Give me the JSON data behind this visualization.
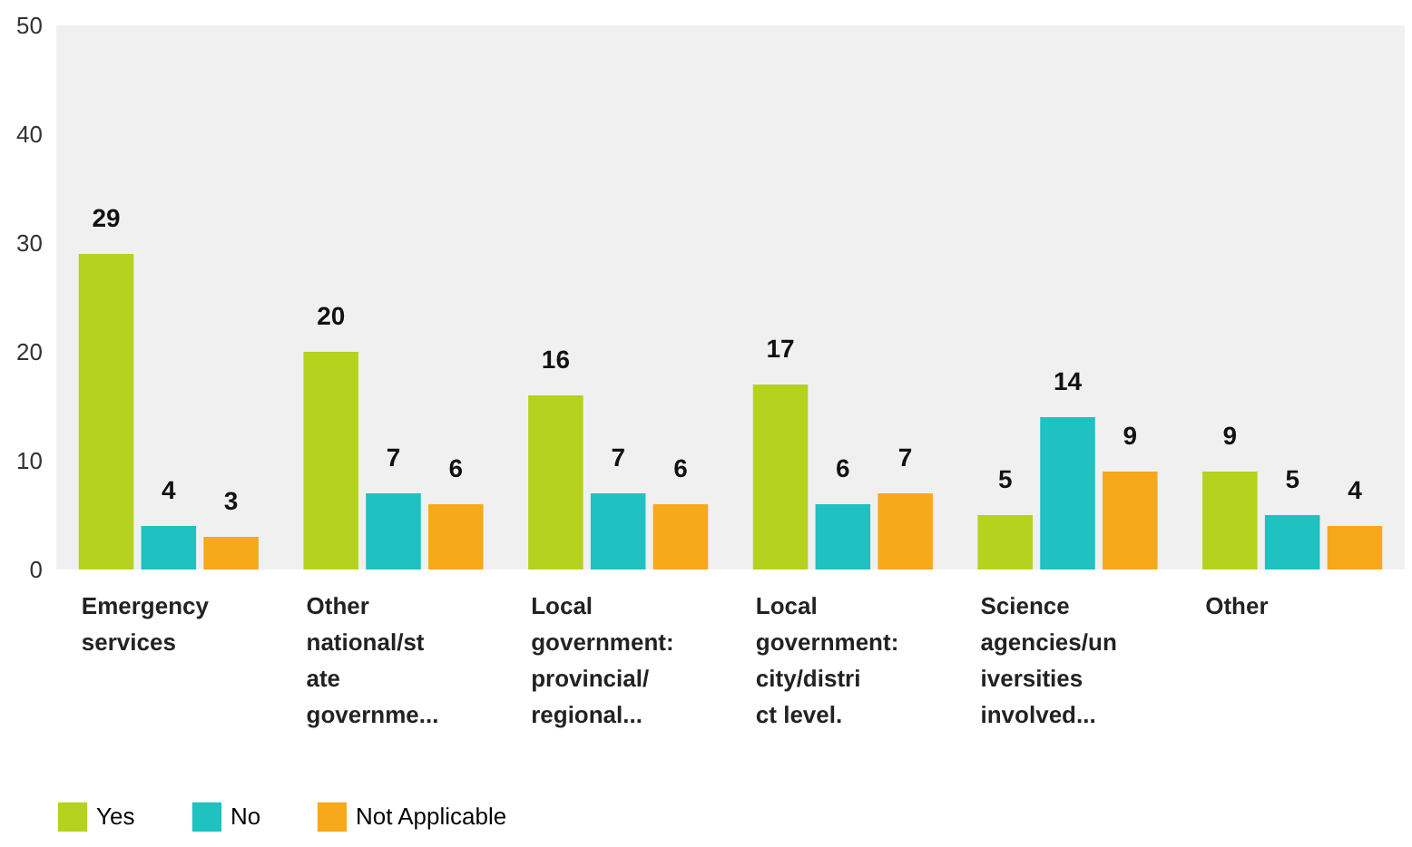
{
  "chart_data": {
    "type": "bar",
    "categories": [
      "Emergency services",
      "Other national/state governme...",
      "Local government: provincial/ regional...",
      "Local government: city/district level.",
      "Science agencies/universities involved...",
      "Other"
    ],
    "series": [
      {
        "name": "Yes",
        "color": "#b5d21f",
        "values": [
          29,
          20,
          16,
          17,
          5,
          9
        ]
      },
      {
        "name": "No",
        "color": "#1fc1c1",
        "values": [
          4,
          7,
          7,
          6,
          14,
          5
        ]
      },
      {
        "name": "Not Applicable",
        "color": "#f7a81b",
        "values": [
          3,
          6,
          6,
          7,
          9,
          4
        ]
      }
    ],
    "ylim": [
      0,
      50
    ],
    "yticks": [
      0,
      10,
      20,
      30,
      40,
      50
    ],
    "grid": false,
    "legend": "bottom",
    "data_labels": true
  }
}
